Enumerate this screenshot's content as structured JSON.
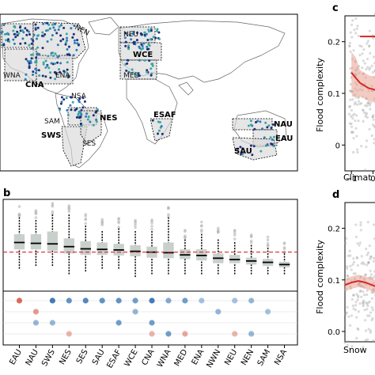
{
  "panels": {
    "a_map": "",
    "b": "b",
    "c": "c",
    "d": "d"
  },
  "map_regions": [
    {
      "name": "NEN",
      "bold": false
    },
    {
      "name": "NEU",
      "bold": false
    },
    {
      "name": "WCE",
      "bold": true
    },
    {
      "name": "MED",
      "bold": false
    },
    {
      "name": "WNA",
      "bold": false
    },
    {
      "name": "CNA",
      "bold": true
    },
    {
      "name": "ENA",
      "bold": false
    },
    {
      "name": "NSA",
      "bold": false
    },
    {
      "name": "SAM",
      "bold": false
    },
    {
      "name": "NES",
      "bold": true
    },
    {
      "name": "SWS",
      "bold": true
    },
    {
      "name": "SES",
      "bold": false
    },
    {
      "name": "ESAF",
      "bold": true
    },
    {
      "name": "NAU",
      "bold": true
    },
    {
      "name": "EAU",
      "bold": true
    },
    {
      "name": "SAU",
      "bold": true
    }
  ],
  "chart_data": [
    {
      "type": "box",
      "panel": "b",
      "categories": [
        "EAU",
        "NAU",
        "SWS",
        "NES",
        "SES",
        "SAU",
        "ESAF",
        "WCE",
        "CNA",
        "WNA",
        "MED",
        "ENA",
        "NWN",
        "NEU",
        "NEN",
        "SAM",
        "NSA"
      ],
      "median": [
        0.165,
        0.162,
        0.16,
        0.15,
        0.142,
        0.14,
        0.138,
        0.133,
        0.13,
        0.128,
        0.12,
        0.118,
        0.108,
        0.103,
        0.098,
        0.093,
        0.085
      ],
      "q1": [
        0.14,
        0.14,
        0.135,
        0.125,
        0.12,
        0.12,
        0.118,
        0.115,
        0.11,
        0.108,
        0.105,
        0.1,
        0.09,
        0.09,
        0.085,
        0.08,
        0.075
      ],
      "q3": [
        0.195,
        0.195,
        0.205,
        0.18,
        0.17,
        0.165,
        0.16,
        0.155,
        0.15,
        0.165,
        0.14,
        0.14,
        0.125,
        0.12,
        0.11,
        0.105,
        0.095
      ],
      "whisker_low": [
        0.07,
        0.08,
        0.08,
        0.05,
        0.06,
        0.07,
        0.07,
        0.04,
        0.05,
        0.05,
        0.05,
        0.05,
        0.05,
        0.05,
        0.05,
        0.05,
        0.05
      ],
      "whisker_high": [
        0.26,
        0.25,
        0.27,
        0.27,
        0.23,
        0.21,
        0.22,
        0.21,
        0.21,
        0.26,
        0.18,
        0.2,
        0.18,
        0.17,
        0.16,
        0.15,
        0.13
      ],
      "reference_line": 0.13,
      "ylim": [
        0.0,
        0.31
      ],
      "heatmap_rows": 4,
      "heatmap_values": [
        [
          -0.9,
          0.0,
          0.8,
          0.6,
          0.7,
          0.6,
          0.6,
          0.5,
          0.8,
          0.4,
          0.5,
          0.2,
          0.0,
          0.2,
          0.3,
          0.0,
          0.0
        ],
        [
          0.0,
          -0.5,
          0.0,
          0.0,
          0.0,
          0.0,
          0.0,
          0.3,
          0.0,
          0.0,
          0.0,
          0.0,
          0.3,
          0.0,
          0.0,
          0.2,
          0.0
        ],
        [
          0.0,
          0.3,
          0.3,
          0.0,
          0.0,
          0.0,
          0.5,
          0.0,
          0.5,
          0.0,
          0.0,
          0.0,
          0.0,
          0.0,
          0.0,
          0.0,
          0.0
        ],
        [
          0.0,
          0.0,
          0.0,
          -0.3,
          0.0,
          0.0,
          0.0,
          0.0,
          -0.3,
          0.5,
          -0.4,
          0.0,
          0.0,
          -0.3,
          0.3,
          0.0,
          0.0
        ]
      ]
    },
    {
      "type": "scatter",
      "panel": "c",
      "ylabel": "Flood complexity",
      "xlabel": "Climat",
      "yticks": [
        "0.2",
        "0.1",
        "0"
      ],
      "xticks": [
        "−1",
        "0"
      ],
      "ylim": [
        -0.05,
        0.25
      ],
      "xlim": [
        -1.3,
        0.9
      ],
      "trend_x": [
        -1.0,
        -0.8,
        -0.6,
        -0.4,
        -0.2,
        0.0,
        0.2,
        0.4,
        0.6,
        0.8
      ],
      "trend_y": [
        0.14,
        0.13,
        0.12,
        0.115,
        0.11,
        0.108,
        0.105,
        0.104,
        0.103,
        0.102
      ],
      "reference_y": 0.21
    },
    {
      "type": "scatter",
      "panel": "d",
      "ylabel": "Flood complexity",
      "xlabel": "Snow",
      "yticks": [
        "0.2",
        "0.1",
        "0.0"
      ],
      "ylim": [
        -0.02,
        0.25
      ],
      "trend_x": [
        0.0,
        0.1,
        0.2,
        0.3,
        0.4,
        0.5,
        0.6
      ],
      "trend_y": [
        0.09,
        0.095,
        0.098,
        0.095,
        0.09,
        0.085,
        0.08
      ]
    }
  ],
  "colors": {
    "station_dark": "#1d2e7a",
    "station_mid": "#2f7bb5",
    "station_teal": "#3aa7a0",
    "box_fill": "#c8d0cc",
    "ref_line": "#d62728",
    "land": "#ffffff",
    "region_fill": "#d9d9d9"
  }
}
